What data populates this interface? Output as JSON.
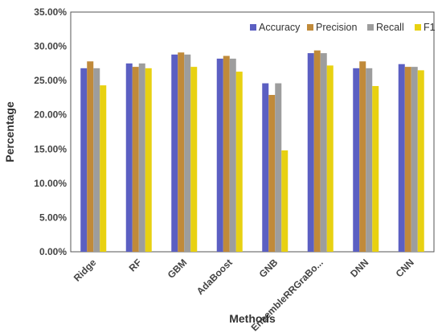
{
  "chart_data": {
    "type": "bar",
    "title": "",
    "xlabel": "Methods",
    "ylabel": "Percentage",
    "ylim": [
      0,
      35
    ],
    "y_ticks": [
      0,
      5,
      10,
      15,
      20,
      25,
      30,
      35
    ],
    "y_tick_format": "percent-2dp",
    "grid": false,
    "legend_position": "top-right",
    "categories": [
      "Ridge",
      "RF",
      "GBM",
      "AdaBoost",
      "GNB",
      "EnsembleRRGraBo...",
      "DNN",
      "CNN"
    ],
    "series": [
      {
        "name": "Accuracy",
        "color": "#5b5fc2",
        "values": [
          26.8,
          27.5,
          28.8,
          28.2,
          24.6,
          29.0,
          26.8,
          27.4
        ]
      },
      {
        "name": "Precision",
        "color": "#c08a3a",
        "values": [
          27.8,
          27.0,
          29.1,
          28.6,
          22.9,
          29.4,
          27.8,
          27.0
        ]
      },
      {
        "name": "Recall",
        "color": "#9d9d9d",
        "values": [
          26.8,
          27.5,
          28.8,
          28.2,
          24.6,
          29.0,
          26.8,
          27.0
        ]
      },
      {
        "name": "F1",
        "color": "#e8d111",
        "values": [
          24.3,
          26.8,
          27.0,
          26.3,
          14.8,
          27.2,
          24.2,
          26.5
        ]
      }
    ]
  }
}
